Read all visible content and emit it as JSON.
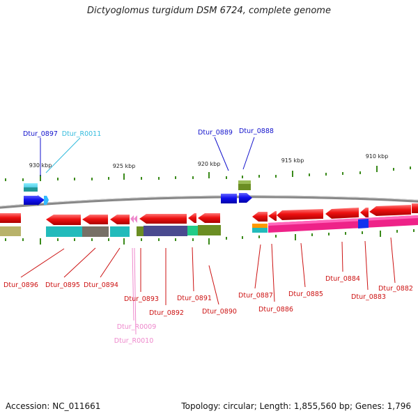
{
  "title": "Dictyoglomus turgidum DSM 6724, complete genome",
  "footer": {
    "accession": "Accession: NC_011661",
    "summary": "Topology: circular; Length: 1,855,560 bp; Genes: 1,796"
  },
  "scale": {
    "unit": "kbp",
    "ticks": [
      "930 kbp",
      "925 kbp",
      "920 kbp",
      "915 kbp",
      "910 kbp"
    ]
  },
  "colors": {
    "gene_red": "#ee1111",
    "plus_blue": "#1111ee",
    "trna_cyan": "#22bbcc",
    "rna_pink": "#ee88cc",
    "backbone": "#888888",
    "tick_green": "#3a8a1a"
  },
  "genes": {
    "forward": [
      {
        "name": "Dtur_0897",
        "color": "#1111cc"
      },
      {
        "name": "Dtur_R0011",
        "color": "#33bbdd"
      },
      {
        "name": "Dtur_0889",
        "color": "#1111cc"
      },
      {
        "name": "Dtur_0888",
        "color": "#1111cc"
      }
    ],
    "reverse": [
      {
        "name": "Dtur_0896",
        "color": "#cc1111"
      },
      {
        "name": "Dtur_0895",
        "color": "#cc1111"
      },
      {
        "name": "Dtur_0894",
        "color": "#cc1111"
      },
      {
        "name": "Dtur_0893",
        "color": "#cc1111"
      },
      {
        "name": "Dtur_0892",
        "color": "#cc1111"
      },
      {
        "name": "Dtur_0891",
        "color": "#cc1111"
      },
      {
        "name": "Dtur_0890",
        "color": "#cc1111"
      },
      {
        "name": "Dtur_R0009",
        "color": "#ee88cc"
      },
      {
        "name": "Dtur_R0010",
        "color": "#ee88cc"
      },
      {
        "name": "Dtur_0887",
        "color": "#cc1111"
      },
      {
        "name": "Dtur_0886",
        "color": "#cc1111"
      },
      {
        "name": "Dtur_0885",
        "color": "#cc1111"
      },
      {
        "name": "Dtur_0884",
        "color": "#cc1111"
      },
      {
        "name": "Dtur_0883",
        "color": "#cc1111"
      },
      {
        "name": "Dtur_0882",
        "color": "#cc1111"
      }
    ]
  }
}
